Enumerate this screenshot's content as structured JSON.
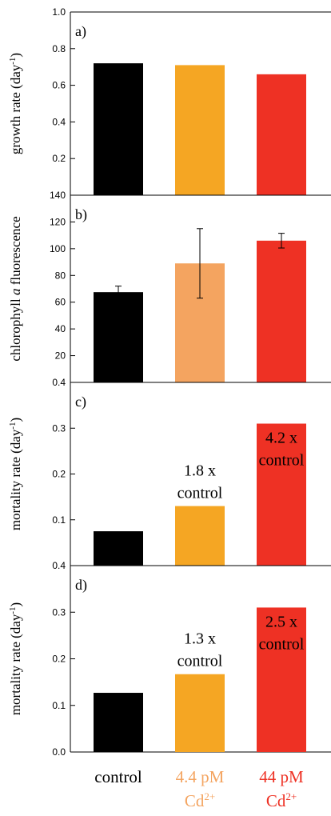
{
  "chart_data": [
    {
      "type": "bar",
      "panel": "a)",
      "categories": [
        "control",
        "4.4 pM Cd2+",
        "44 pM Cd2+"
      ],
      "values": [
        0.72,
        0.71,
        0.66
      ],
      "ylabel": "growth rate (day",
      "ylabel_sup": "-1",
      "ylabel_tail": ")",
      "ylim": [
        0.0,
        1.0
      ],
      "yticks": [
        "0.2",
        "0.4",
        "0.6",
        "0.8",
        "1.0"
      ],
      "colors": [
        "#000000",
        "#f5a623",
        "#ee3124"
      ]
    },
    {
      "type": "bar",
      "panel": "b)",
      "categories": [
        "control",
        "4.4 pM Cd2+",
        "44 pM Cd2+"
      ],
      "values": [
        67.5,
        89,
        106
      ],
      "error": [
        4.5,
        26,
        5.5
      ],
      "ylabel": "chlorophyll ",
      "ylabel_italic": "a",
      "ylabel_tail": " fluorescence",
      "ylim": [
        0,
        140
      ],
      "yticks": [
        "20",
        "40",
        "60",
        "80",
        "100",
        "120",
        "140"
      ],
      "colors": [
        "#000000",
        "#f4a460",
        "#ee3124"
      ]
    },
    {
      "type": "bar",
      "panel": "c)",
      "categories": [
        "control",
        "4.4 pM Cd2+",
        "44 pM Cd2+"
      ],
      "values": [
        0.075,
        0.13,
        0.31
      ],
      "annotations": [
        "",
        "1.8 x\ncontrol",
        "4.2 x\ncontrol"
      ],
      "ylabel": "mortality rate (day",
      "ylabel_sup": "-1",
      "ylabel_tail": ")",
      "ylim": [
        0.0,
        0.4
      ],
      "yticks": [
        "0.1",
        "0.2",
        "0.3",
        "0.4"
      ],
      "colors": [
        "#000000",
        "#f5a623",
        "#ee3124"
      ]
    },
    {
      "type": "bar",
      "panel": "d)",
      "categories": [
        "control",
        "4.4 pM Cd2+",
        "44 pM Cd2+"
      ],
      "values": [
        0.127,
        0.167,
        0.31
      ],
      "annotations": [
        "",
        "1.3 x\ncontrol",
        "2.5 x\ncontrol"
      ],
      "ylabel": "mortality rate (day",
      "ylabel_sup": "-1",
      "ylabel_tail": ")",
      "ylim": [
        0.0,
        0.4
      ],
      "yticks": [
        "0.0",
        "0.1",
        "0.2",
        "0.3",
        "0.4"
      ],
      "colors": [
        "#000000",
        "#f5a623",
        "#ee3124"
      ]
    }
  ],
  "x_labels": [
    {
      "line1": "control",
      "line2": "",
      "sup": "",
      "color": "#000000"
    },
    {
      "line1": "4.4 pM",
      "line2": "Cd",
      "sup": "2+",
      "color": "#f4a460"
    },
    {
      "line1": "44 pM",
      "line2": "Cd",
      "sup": "2+",
      "color": "#ee3124"
    }
  ]
}
